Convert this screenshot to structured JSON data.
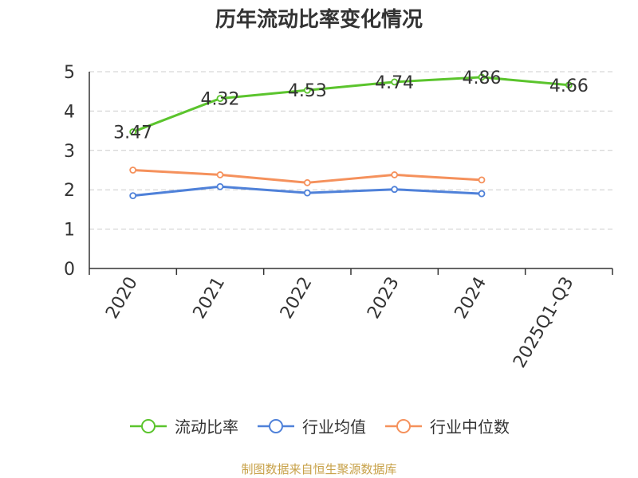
{
  "chart_data": {
    "type": "line",
    "title": "历年流动比率变化情况",
    "categories": [
      "2020",
      "2021",
      "2022",
      "2023",
      "2024",
      "2025Q1-Q3"
    ],
    "ylim": [
      0,
      5
    ],
    "yticks": [
      0,
      1,
      2,
      3,
      4,
      5
    ],
    "grid": true,
    "legend_position": "bottom",
    "series": [
      {
        "name": "流动比率",
        "color": "#5bc42d",
        "values": [
          3.47,
          4.32,
          4.53,
          4.74,
          4.86,
          4.66
        ],
        "show_labels": true
      },
      {
        "name": "行业均值",
        "color": "#4f81d9",
        "values": [
          1.85,
          2.08,
          1.92,
          2.01,
          1.9,
          null
        ],
        "show_labels": false
      },
      {
        "name": "行业中位数",
        "color": "#f5915c",
        "values": [
          2.5,
          2.38,
          2.18,
          2.38,
          2.25,
          null
        ],
        "show_labels": false
      }
    ]
  },
  "source": "制图数据来自恒生聚源数据库"
}
